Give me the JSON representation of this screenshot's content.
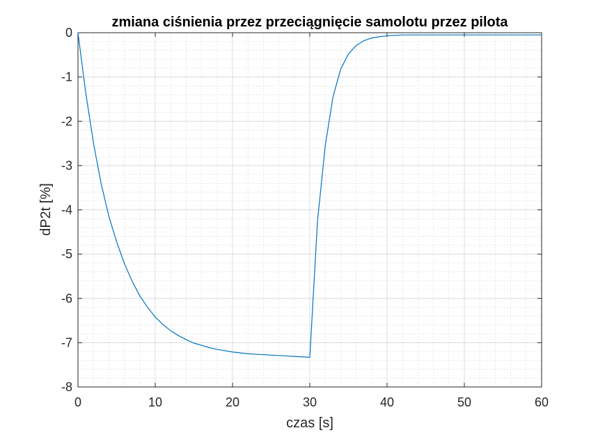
{
  "chart_data": {
    "type": "line",
    "title": "zmiana ciśnienia przez przeciągnięcie samolotu przez pilota",
    "xlabel": "czas [s]",
    "ylabel": "dP2t [%]",
    "xlim": [
      0,
      60
    ],
    "ylim": [
      -8,
      0
    ],
    "xticks": [
      0,
      10,
      20,
      30,
      40,
      50,
      60
    ],
    "yticks": [
      -8,
      -7,
      -6,
      -5,
      -4,
      -3,
      -2,
      -1,
      0
    ],
    "grid": true,
    "minor_grid": true,
    "line_color": "#0072BD",
    "series": [
      {
        "x": [
          0,
          1,
          2,
          3,
          4,
          5,
          6,
          7,
          8,
          9,
          10,
          11,
          12,
          13,
          14,
          15,
          16,
          17,
          18,
          19,
          20,
          21,
          22,
          23,
          24,
          25,
          26,
          27,
          28,
          29,
          30,
          31,
          32,
          33,
          34,
          35,
          36,
          37,
          38,
          39,
          40,
          41,
          42,
          43,
          44,
          45,
          46,
          47,
          48,
          49,
          50,
          51,
          52,
          53,
          54,
          55,
          56,
          57,
          58,
          59,
          60
        ],
        "y": [
          0,
          -1.35,
          -2.49,
          -3.41,
          -4.15,
          -4.72,
          -5.21,
          -5.61,
          -5.94,
          -6.2,
          -6.42,
          -6.59,
          -6.73,
          -6.84,
          -6.93,
          -7.01,
          -7.06,
          -7.11,
          -7.15,
          -7.18,
          -7.21,
          -7.23,
          -7.25,
          -7.26,
          -7.27,
          -7.28,
          -7.29,
          -7.3,
          -7.31,
          -7.32,
          -7.33,
          -4.25,
          -2.55,
          -1.45,
          -0.82,
          -0.48,
          -0.29,
          -0.18,
          -0.12,
          -0.09,
          -0.07,
          -0.06,
          -0.05,
          -0.05,
          -0.05,
          -0.05,
          -0.05,
          -0.05,
          -0.05,
          -0.05,
          -0.05,
          -0.05,
          -0.05,
          -0.05,
          -0.05,
          -0.05,
          -0.05,
          -0.05,
          -0.05,
          -0.05,
          -0.05
        ]
      }
    ]
  }
}
